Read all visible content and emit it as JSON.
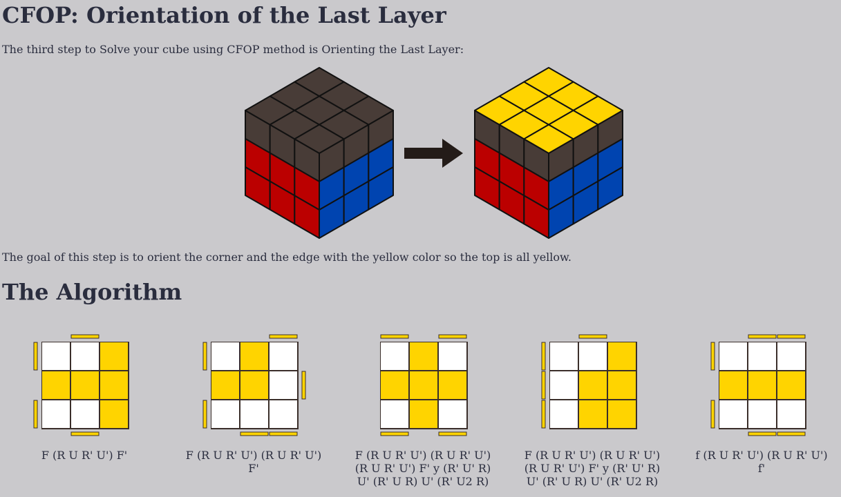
{
  "page": {
    "title": "CFOP: Orientation of the Last Layer",
    "intro": "The third step to Solve your cube using CFOP method is Orienting the Last Layer:",
    "goal": "The goal of this step is to orient the corner and the edge with the yellow color so the top is all yellow.",
    "algorithm_heading": "The Algorithm"
  },
  "colors": {
    "background": "#cac9cc",
    "text": "#2a2d3e",
    "yellow": "#ffd400",
    "red": "#bb0000",
    "blue": "#0044b0",
    "dark": "#483c37",
    "white": "#ffffff",
    "arrow": "#231b18"
  },
  "diagram": {
    "before_top": [
      "dark",
      "dark",
      "dark",
      "dark",
      "dark",
      "dark",
      "dark",
      "dark",
      "dark"
    ],
    "after_top": [
      "yellow",
      "yellow",
      "yellow",
      "yellow",
      "yellow",
      "yellow",
      "yellow",
      "yellow",
      "yellow"
    ],
    "arrow_icon": "right-arrow-icon"
  },
  "cases": [
    {
      "grid": [
        "W",
        "W",
        "Y",
        "Y",
        "Y",
        "Y",
        "W",
        "W",
        "Y"
      ],
      "side_marks": {
        "top": [
          "-",
          "Y",
          "-"
        ],
        "left": [
          "Y",
          "-",
          "Y"
        ],
        "right": [
          "-",
          "-",
          "-"
        ],
        "bottom": [
          "-",
          "Y",
          "-"
        ]
      },
      "algorithm_lines": [
        "F (R U R' U') F'"
      ]
    },
    {
      "grid": [
        "W",
        "Y",
        "W",
        "Y",
        "Y",
        "W",
        "W",
        "W",
        "W"
      ],
      "side_marks": {
        "top": [
          "-",
          "-",
          "Y"
        ],
        "left": [
          "Y",
          "-",
          "Y"
        ],
        "right": [
          "-",
          "Y",
          "-"
        ],
        "bottom": [
          "-",
          "Y",
          "Y"
        ]
      },
      "algorithm_lines": [
        "F (R U R' U') (R U R' U')",
        "F'"
      ]
    },
    {
      "grid": [
        "W",
        "Y",
        "W",
        "Y",
        "Y",
        "Y",
        "W",
        "Y",
        "W"
      ],
      "side_marks": {
        "top": [
          "Y",
          "-",
          "Y"
        ],
        "left": [
          "-",
          "-",
          "-"
        ],
        "right": [
          "-",
          "-",
          "-"
        ],
        "bottom": [
          "Y",
          "-",
          "Y"
        ]
      },
      "algorithm_lines": [
        "F (R U R' U') (R U R' U')",
        "(R U R' U') F' y (R' U' R)",
        "U' (R' U R) U' (R' U2 R)"
      ]
    },
    {
      "grid": [
        "W",
        "W",
        "Y",
        "W",
        "Y",
        "Y",
        "W",
        "Y",
        "Y"
      ],
      "side_marks": {
        "top": [
          "-",
          "Y",
          "-"
        ],
        "left": [
          "Y",
          "Y",
          "Y"
        ],
        "right": [
          "-",
          "-",
          "-"
        ],
        "bottom": [
          "-",
          "-",
          "-"
        ]
      },
      "algorithm_lines": [
        "F (R U R' U') (R U R' U')",
        "(R U R' U') F' y (R' U' R)",
        "U' (R' U R) U' (R' U2 R)"
      ]
    },
    {
      "grid": [
        "W",
        "W",
        "W",
        "Y",
        "Y",
        "Y",
        "W",
        "W",
        "W"
      ],
      "side_marks": {
        "top": [
          "-",
          "Y",
          "Y"
        ],
        "left": [
          "Y",
          "-",
          "Y"
        ],
        "right": [
          "-",
          "-",
          "-"
        ],
        "bottom": [
          "-",
          "Y",
          "Y"
        ]
      },
      "algorithm_lines": [
        "f (R U R' U') (R U R' U')",
        "f'"
      ]
    }
  ]
}
